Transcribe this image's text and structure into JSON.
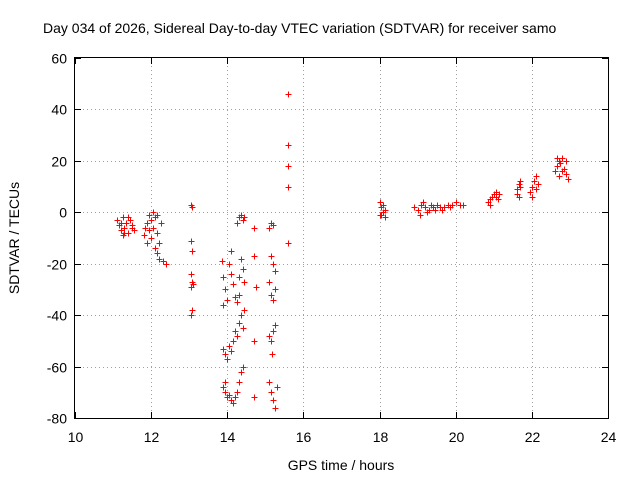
{
  "chart_data": {
    "type": "scatter",
    "title": "Day 034 of 2026, Sidereal Day-to-day VTEC variation (SDTVAR) for receiver samo",
    "xlabel": "GPS time / hours",
    "ylabel": "SDTVAR / TECUs",
    "xlim": [
      10,
      24
    ],
    "ylim": [
      -80,
      60
    ],
    "xticks": [
      10,
      12,
      14,
      16,
      18,
      20,
      22,
      24
    ],
    "yticks": [
      -80,
      -60,
      -40,
      -20,
      0,
      20,
      40,
      60
    ],
    "xtick_labels": [
      "10",
      "12",
      "14",
      "16",
      "18",
      "20",
      "22",
      "24"
    ],
    "ytick_labels": [
      "-80",
      "-60",
      "-40",
      "-20",
      "0",
      "20",
      "40",
      "60"
    ],
    "grid": true,
    "marker": "+",
    "marker_color": "#ff0000",
    "series": [
      {
        "name": "SDTVAR",
        "points": [
          [
            11.1,
            -3
          ],
          [
            11.15,
            -5
          ],
          [
            11.2,
            -7
          ],
          [
            11.25,
            -2
          ],
          [
            11.3,
            -6
          ],
          [
            11.35,
            -4
          ],
          [
            11.4,
            -8
          ],
          [
            11.45,
            -3
          ],
          [
            11.5,
            -5
          ],
          [
            11.55,
            -7
          ],
          [
            11.2,
            -4
          ],
          [
            11.3,
            -8
          ],
          [
            11.4,
            -2
          ],
          [
            11.5,
            -6
          ],
          [
            11.25,
            -9
          ],
          [
            11.8,
            -9
          ],
          [
            11.85,
            -6
          ],
          [
            11.9,
            -4
          ],
          [
            11.95,
            -1
          ],
          [
            12.0,
            -3
          ],
          [
            12.05,
            -6
          ],
          [
            12.1,
            -2
          ],
          [
            12.15,
            -8
          ],
          [
            12.2,
            -12
          ],
          [
            12.25,
            -4
          ],
          [
            11.9,
            -12
          ],
          [
            12.0,
            -10
          ],
          [
            12.1,
            -14
          ],
          [
            11.95,
            -7
          ],
          [
            12.05,
            0
          ],
          [
            12.15,
            -1
          ],
          [
            12.2,
            -18
          ],
          [
            12.3,
            -19
          ],
          [
            12.4,
            -20
          ],
          [
            12.15,
            -16
          ],
          [
            13.05,
            3
          ],
          [
            13.08,
            2
          ],
          [
            13.05,
            -11
          ],
          [
            13.08,
            -15
          ],
          [
            13.05,
            -24
          ],
          [
            13.08,
            -27
          ],
          [
            13.05,
            -29
          ],
          [
            13.08,
            -38
          ],
          [
            13.05,
            -40
          ],
          [
            13.1,
            -28
          ],
          [
            13.85,
            -19
          ],
          [
            13.9,
            -25
          ],
          [
            13.95,
            -30
          ],
          [
            14.0,
            -34
          ],
          [
            14.05,
            -20
          ],
          [
            14.1,
            -15
          ],
          [
            14.15,
            -28
          ],
          [
            14.2,
            -33
          ],
          [
            14.25,
            -35
          ],
          [
            14.3,
            -25
          ],
          [
            14.35,
            -18
          ],
          [
            14.4,
            -22
          ],
          [
            14.45,
            -27
          ],
          [
            13.9,
            -36
          ],
          [
            14.1,
            -24
          ],
          [
            14.3,
            -32
          ],
          [
            14.25,
            -4
          ],
          [
            14.3,
            -2
          ],
          [
            14.35,
            -1
          ],
          [
            14.4,
            -3
          ],
          [
            14.45,
            -2
          ],
          [
            13.9,
            -53
          ],
          [
            13.95,
            -55
          ],
          [
            14.0,
            -57
          ],
          [
            14.1,
            -54
          ],
          [
            14.15,
            -50
          ],
          [
            14.2,
            -46
          ],
          [
            14.25,
            -48
          ],
          [
            14.3,
            -43
          ],
          [
            14.35,
            -40
          ],
          [
            14.05,
            -52
          ],
          [
            14.4,
            -45
          ],
          [
            14.45,
            -38
          ],
          [
            13.9,
            -68
          ],
          [
            13.95,
            -70
          ],
          [
            14.0,
            -72
          ],
          [
            14.1,
            -73
          ],
          [
            14.15,
            -74
          ],
          [
            14.2,
            -72
          ],
          [
            14.25,
            -70
          ],
          [
            14.3,
            -66
          ],
          [
            14.35,
            -62
          ],
          [
            14.4,
            -60
          ],
          [
            13.95,
            -66
          ],
          [
            14.05,
            -71
          ],
          [
            14.7,
            -6
          ],
          [
            14.7,
            -17
          ],
          [
            14.75,
            -29
          ],
          [
            14.7,
            -50
          ],
          [
            14.7,
            -72
          ],
          [
            15.1,
            -6
          ],
          [
            15.15,
            -4
          ],
          [
            15.2,
            -5
          ],
          [
            15.15,
            -17
          ],
          [
            15.2,
            -20
          ],
          [
            15.25,
            -23
          ],
          [
            15.1,
            -27
          ],
          [
            15.15,
            -32
          ],
          [
            15.2,
            -34
          ],
          [
            15.25,
            -30
          ],
          [
            15.1,
            -48
          ],
          [
            15.15,
            -50
          ],
          [
            15.2,
            -46
          ],
          [
            15.25,
            -44
          ],
          [
            15.1,
            -66
          ],
          [
            15.15,
            -70
          ],
          [
            15.2,
            -73
          ],
          [
            15.25,
            -76
          ],
          [
            15.3,
            -68
          ],
          [
            15.18,
            -55
          ],
          [
            15.6,
            46
          ],
          [
            15.6,
            26
          ],
          [
            15.6,
            18
          ],
          [
            15.6,
            10
          ],
          [
            15.6,
            -12
          ],
          [
            18.0,
            4
          ],
          [
            18.05,
            2
          ],
          [
            18.1,
            0
          ],
          [
            18.15,
            -2
          ],
          [
            18.1,
            3
          ],
          [
            18.05,
            -1
          ],
          [
            18.15,
            1
          ],
          [
            18.0,
            -1
          ],
          [
            18.9,
            2
          ],
          [
            19.0,
            1
          ],
          [
            19.1,
            3
          ],
          [
            19.2,
            2
          ],
          [
            19.3,
            1
          ],
          [
            19.4,
            2
          ],
          [
            19.5,
            3
          ],
          [
            19.6,
            2
          ],
          [
            19.7,
            2
          ],
          [
            19.8,
            3
          ],
          [
            19.9,
            3
          ],
          [
            20.0,
            4
          ],
          [
            20.1,
            3
          ],
          [
            20.2,
            3
          ],
          [
            19.05,
            -1
          ],
          [
            19.25,
            0
          ],
          [
            19.45,
            1
          ],
          [
            19.65,
            1
          ],
          [
            19.85,
            2
          ],
          [
            19.15,
            4
          ],
          [
            19.35,
            3
          ],
          [
            20.85,
            4
          ],
          [
            20.9,
            5
          ],
          [
            20.95,
            6
          ],
          [
            21.0,
            7
          ],
          [
            21.05,
            6
          ],
          [
            21.1,
            5
          ],
          [
            21.15,
            7
          ],
          [
            20.9,
            3
          ],
          [
            21.05,
            8
          ],
          [
            21.6,
            9
          ],
          [
            21.65,
            11
          ],
          [
            21.7,
            12
          ],
          [
            21.6,
            7
          ],
          [
            21.65,
            6
          ],
          [
            21.7,
            10
          ],
          [
            21.95,
            8
          ],
          [
            22.0,
            10
          ],
          [
            22.05,
            12
          ],
          [
            22.1,
            14
          ],
          [
            22.15,
            11
          ],
          [
            22.0,
            6
          ],
          [
            22.1,
            9
          ],
          [
            22.6,
            16
          ],
          [
            22.65,
            18
          ],
          [
            22.7,
            20
          ],
          [
            22.75,
            19
          ],
          [
            22.8,
            21
          ],
          [
            22.85,
            17
          ],
          [
            22.9,
            15
          ],
          [
            22.95,
            13
          ],
          [
            22.7,
            14
          ],
          [
            22.8,
            16
          ],
          [
            22.65,
            21
          ],
          [
            22.9,
            20
          ]
        ]
      }
    ]
  }
}
